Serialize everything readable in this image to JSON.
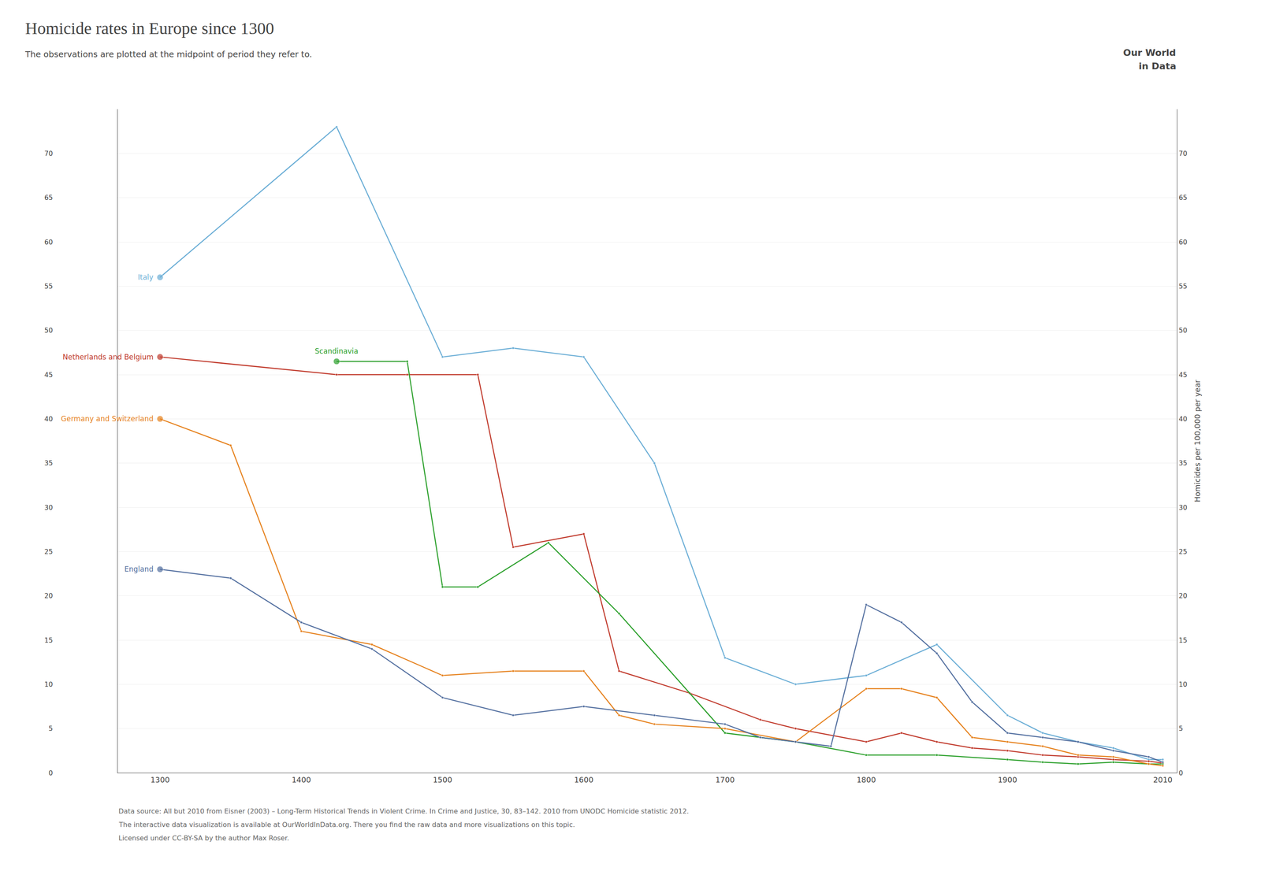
{
  "chart_data": {
    "type": "line",
    "title": "Homicide rates in Europe since 1300",
    "subtitle": "The observations are plotted at the midpoint of period they refer to.",
    "y2label": "Homicides per 100,000 per year",
    "annotations": [
      "Our World",
      "in Data",
      "Data source: All but 2010 from Eisner (2003) – Long-Term Historical Trends in Violent Crime. In Crime and Justice, 30, 83–142. 2010 from UNODC Homicide statistic 2012.",
      "The interactive data visualization is available at OurWorldInData.org. There you find the raw data and more visualizations on this topic.",
      "Licensed under CC-BY-SA by the author Max Roser."
    ],
    "marker": "circle",
    "grid": "y",
    "series": [
      {
        "name": "Italy",
        "color": "#6baed6",
        "x": [
          1300,
          1425,
          1500,
          1550,
          1600,
          1650,
          1700,
          1750,
          1800,
          1850,
          1900,
          1925,
          1950,
          1975,
          2000,
          2010
        ],
        "values": [
          56.0,
          73.0,
          47.0,
          48.0,
          47.0,
          35.0,
          13.0,
          10.0,
          11.0,
          14.5,
          6.5,
          4.5,
          3.5,
          2.8,
          1.5,
          1.5
        ]
      },
      {
        "name": "Netherlands and Belgium",
        "color": "#c0392b",
        "x": [
          1300,
          1425,
          1475,
          1525,
          1550,
          1600,
          1625,
          1675,
          1725,
          1750,
          1800,
          1825,
          1850,
          1875,
          1900,
          1925,
          1950,
          1975,
          2000,
          2010
        ],
        "values": [
          47.0,
          45.0,
          45.0,
          45.0,
          25.5,
          27.0,
          11.5,
          9.0,
          6.0,
          5.0,
          3.5,
          4.5,
          3.5,
          2.8,
          2.5,
          2.0,
          1.8,
          1.5,
          1.3,
          1.1
        ]
      },
      {
        "name": "Scandinavia",
        "color": "#2ca02c",
        "x": [
          1425,
          1475,
          1500,
          1525,
          1575,
          1625,
          1700,
          1750,
          1800,
          1850,
          1900,
          1925,
          1950,
          1975,
          2000,
          2010
        ],
        "values": [
          46.5,
          46.5,
          21.0,
          21.0,
          26.0,
          18.0,
          4.5,
          3.5,
          2.0,
          2.0,
          1.5,
          1.2,
          1.0,
          1.2,
          1.0,
          1.0
        ]
      },
      {
        "name": "Germany and Switzerland",
        "color": "#e6821e",
        "x": [
          1300,
          1350,
          1400,
          1450,
          1500,
          1550,
          1600,
          1625,
          1650,
          1700,
          1750,
          1800,
          1825,
          1850,
          1875,
          1900,
          1925,
          1950,
          1975,
          2000,
          2010
        ],
        "values": [
          40.0,
          37.0,
          16.0,
          14.5,
          11.0,
          11.5,
          11.5,
          6.5,
          5.5,
          5.0,
          3.5,
          9.5,
          9.5,
          8.5,
          4.0,
          3.5,
          3.0,
          2.0,
          1.8,
          1.0,
          0.8
        ]
      },
      {
        "name": "England",
        "color": "#5470a0",
        "x": [
          1300,
          1350,
          1400,
          1450,
          1500,
          1550,
          1600,
          1650,
          1700,
          1725,
          1750,
          1775,
          1800,
          1825,
          1850,
          1875,
          1900,
          1925,
          1950,
          1975,
          2000,
          2010
        ],
        "values": [
          23.0,
          22.0,
          17.0,
          14.0,
          8.5,
          6.5,
          7.5,
          6.5,
          5.5,
          4.0,
          3.5,
          3.0,
          19.0,
          17.0,
          13.5,
          8.0,
          4.5,
          4.0,
          3.5,
          2.5,
          1.8,
          1.2
        ]
      }
    ],
    "xlim": [
      1270,
      2020
    ],
    "xticks": [
      1300,
      1400,
      1500,
      1600,
      1700,
      1800,
      1900,
      2010
    ],
    "ylim": [
      0,
      75
    ],
    "yticks": [
      0,
      5,
      10,
      15,
      20,
      25,
      30,
      35,
      40,
      45,
      50,
      55,
      60,
      65,
      70
    ],
    "y2lim": [
      0,
      75
    ],
    "y2ticks": [
      0,
      5,
      10,
      15,
      20,
      25,
      30,
      35,
      40,
      45,
      50,
      55,
      60,
      65,
      70
    ]
  }
}
